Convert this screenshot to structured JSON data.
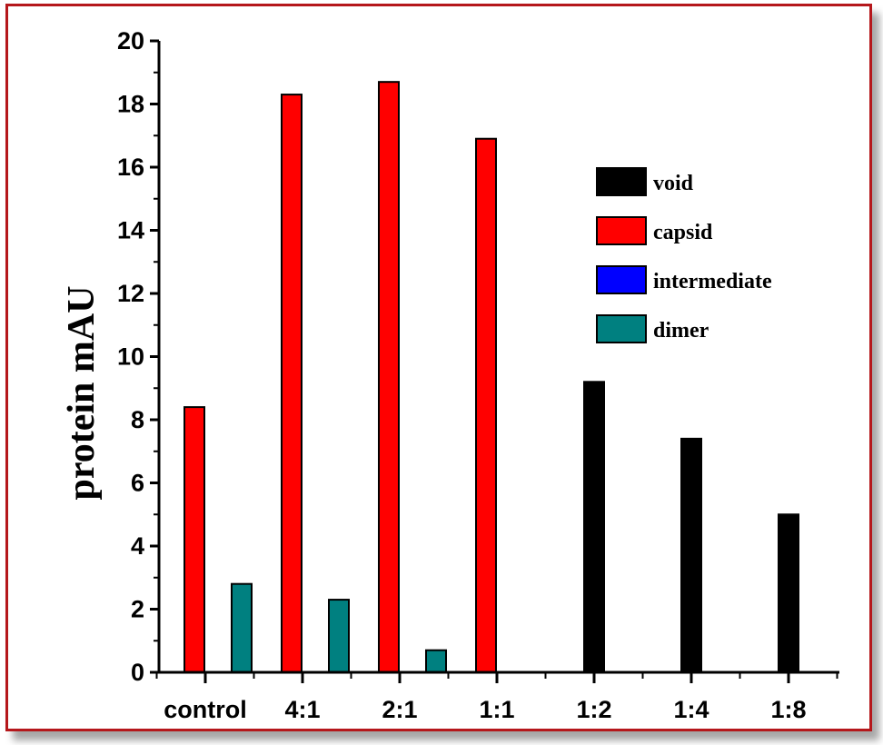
{
  "chart_data": {
    "type": "bar",
    "title": "",
    "xlabel": "",
    "ylabel": "protein mAU",
    "ylim": [
      0,
      20
    ],
    "yticks": [
      0,
      2,
      4,
      6,
      8,
      10,
      12,
      14,
      16,
      18,
      20
    ],
    "categories": [
      "control",
      "4:1",
      "2:1",
      "1:1",
      "1:2",
      "1:4",
      "1:8"
    ],
    "series": [
      {
        "name": "void",
        "color": "#000000",
        "values": [
          0,
          0,
          0,
          0,
          9.2,
          7.4,
          5.0
        ]
      },
      {
        "name": "capsid",
        "color": "#ff0000",
        "values": [
          8.4,
          18.3,
          18.7,
          16.9,
          0,
          0,
          0
        ]
      },
      {
        "name": "intermediate",
        "color": "#0000ff",
        "values": [
          0,
          0,
          0,
          0,
          0,
          0,
          0
        ]
      },
      {
        "name": "dimer",
        "color": "#008080",
        "values": [
          2.8,
          2.3,
          0.7,
          0,
          0,
          0,
          0
        ]
      }
    ],
    "legend_position": "right",
    "grid": false
  },
  "frame": {
    "border_color": "#b5171b"
  }
}
